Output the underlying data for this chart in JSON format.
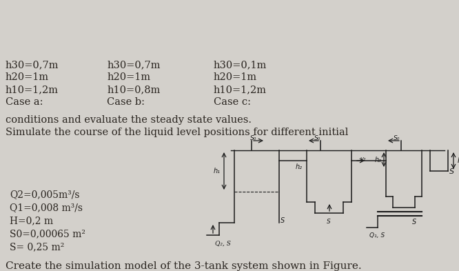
{
  "title": "Create the simulation model of the 3-tank system shown in Figure.",
  "params": [
    "S= 0,25 m²",
    "S0=0,00065 m²",
    "H=0,2 m",
    "Q1=0,008 m³/s",
    "Q2=0,005m³/s"
  ],
  "description_line1": "Simulate the course of the liquid level positions for different initial",
  "description_line2": "conditions and evaluate the steady state values.",
  "case_headers": [
    "Case a:",
    "Case b:",
    "Case c:"
  ],
  "case_a": [
    "h10=1,2m",
    "h20=1m",
    "h30=0,7m"
  ],
  "case_b": [
    "h10=0,8m",
    "h20=1m",
    "h30=0,7m"
  ],
  "case_c": [
    "h10=1,2m",
    "h20=1m",
    "h30=0,1m"
  ],
  "bg_color": "#d3d0cb",
  "text_color": "#2a2520",
  "title_fontsize": 11.0,
  "param_fontsize": 10.0,
  "desc_fontsize": 10.5,
  "case_fontsize": 10.5
}
